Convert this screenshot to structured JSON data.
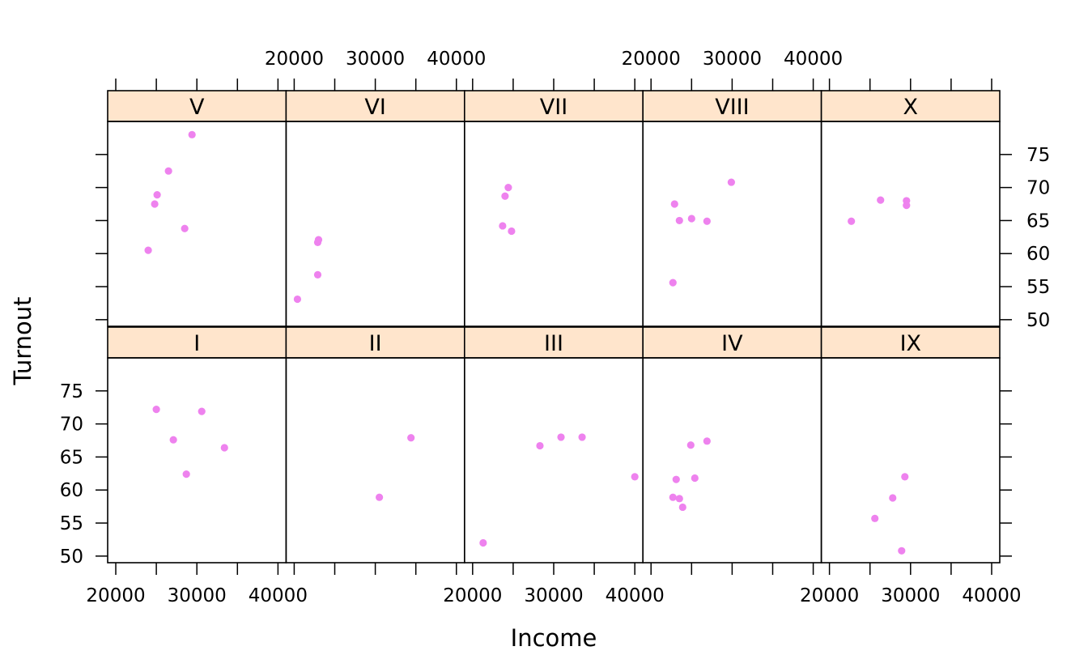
{
  "chart_data": {
    "type": "scatter",
    "layout": "lattice",
    "xlabel": "Income",
    "ylabel": "Turnout",
    "xlim": [
      19000,
      41000
    ],
    "ylim": [
      49,
      80
    ],
    "xticks": [
      20000,
      25000,
      30000,
      35000,
      40000
    ],
    "xtick_labels": [
      "20000",
      "30000",
      "40000"
    ],
    "yticks": [
      50,
      55,
      60,
      65,
      70,
      75
    ],
    "ytick_labels": [
      "50",
      "55",
      "60",
      "65",
      "70",
      "75"
    ],
    "colors": {
      "point": "#ee82ee",
      "strip_bg": "#ffe5cc",
      "frame": "#000000"
    },
    "panels": [
      {
        "label": "I",
        "row": 0,
        "col": 0,
        "x": [
          25000,
          27100,
          30600,
          28700,
          33400
        ],
        "y": [
          72.2,
          67.6,
          71.9,
          62.4,
          66.4
        ]
      },
      {
        "label": "II",
        "row": 0,
        "col": 1,
        "x": [
          30500,
          34400
        ],
        "y": [
          58.9,
          67.9
        ]
      },
      {
        "label": "III",
        "row": 0,
        "col": 2,
        "x": [
          21300,
          28300,
          30900,
          33500,
          40000
        ],
        "y": [
          52.0,
          66.7,
          68.0,
          68.0,
          62.0
        ]
      },
      {
        "label": "IV",
        "row": 0,
        "col": 3,
        "x": [
          22700,
          23100,
          23500,
          23900,
          24900,
          25400,
          26900
        ],
        "y": [
          58.9,
          61.6,
          58.7,
          57.4,
          66.8,
          61.8,
          67.4
        ]
      },
      {
        "label": "IX",
        "row": 0,
        "col": 4,
        "x": [
          25600,
          27800,
          28900,
          29300
        ],
        "y": [
          55.7,
          58.8,
          50.8,
          62.0
        ]
      },
      {
        "label": "V",
        "row": 1,
        "col": 0,
        "x": [
          24000,
          24800,
          25100,
          26500,
          28500,
          29400
        ],
        "y": [
          60.5,
          67.5,
          68.9,
          72.5,
          63.8,
          78.0
        ]
      },
      {
        "label": "VI",
        "row": 1,
        "col": 1,
        "x": [
          20400,
          22900,
          22900,
          23000
        ],
        "y": [
          53.1,
          56.8,
          61.7,
          62.1
        ]
      },
      {
        "label": "VII",
        "row": 1,
        "col": 2,
        "x": [
          23700,
          24000,
          24400,
          24800
        ],
        "y": [
          64.2,
          68.7,
          70.0,
          63.4
        ]
      },
      {
        "label": "VIII",
        "row": 1,
        "col": 3,
        "x": [
          22700,
          22900,
          23500,
          25000,
          26900,
          29900
        ],
        "y": [
          55.6,
          67.5,
          65.0,
          65.3,
          64.9,
          70.8
        ]
      },
      {
        "label": "X",
        "row": 1,
        "col": 4,
        "x": [
          22700,
          26300,
          29500,
          29500
        ],
        "y": [
          64.9,
          68.1,
          68.0,
          67.3
        ]
      }
    ]
  }
}
